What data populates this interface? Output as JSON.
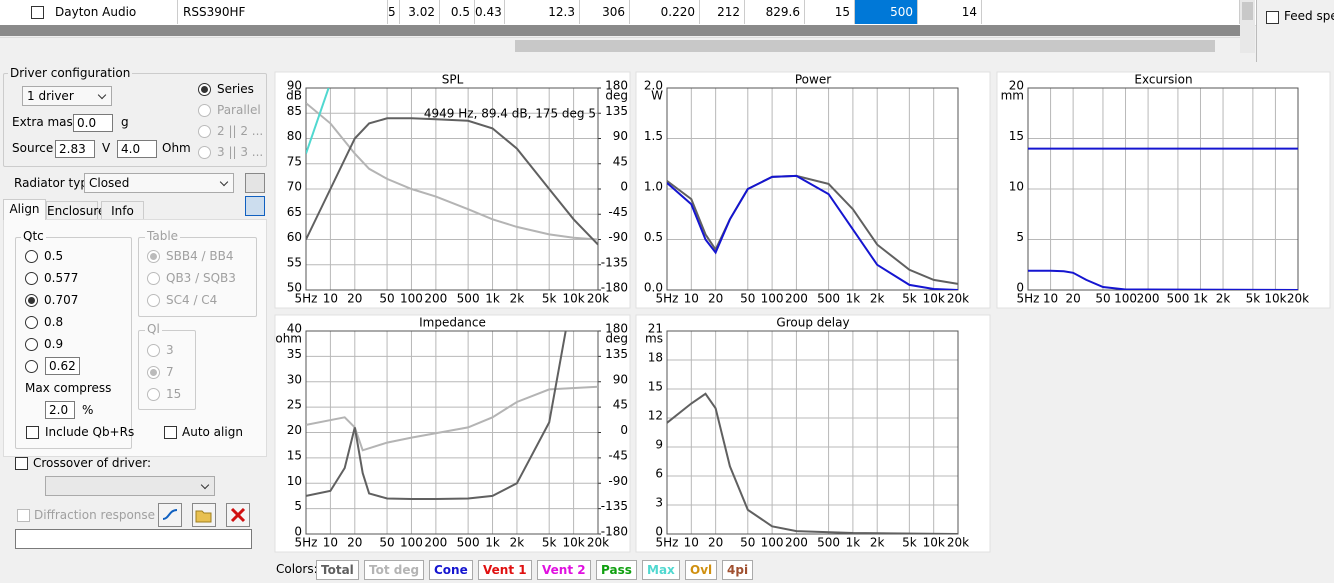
{
  "table": {
    "rows": [
      {
        "checked": false,
        "cells": [
          "Dayton Audio",
          "RSS390HF",
          "5",
          "3.02",
          "0.5",
          "0.43",
          "12.3",
          "306",
          "0.220",
          "212",
          "829.6",
          "15",
          "500",
          "14"
        ]
      }
    ]
  },
  "feed": {
    "label": "Feed spea",
    "checked": false
  },
  "driver_configuration": {
    "title": "Driver configuration",
    "count": "1 driver",
    "wiring": [
      {
        "label": "Series",
        "selected": true,
        "enabled": true
      },
      {
        "label": "Parallel",
        "selected": false,
        "enabled": false
      },
      {
        "label": "2 || 2 ...",
        "selected": false,
        "enabled": false
      },
      {
        "label": "3 || 3 ...",
        "selected": false,
        "enabled": false
      }
    ],
    "extra_mass": {
      "label": "Extra mass",
      "value": "0.0",
      "unit": "g"
    },
    "source": {
      "label": "Source",
      "voltage": "2.83",
      "voltage_unit": "V",
      "resistance": "4.0",
      "resistance_unit": "Ohm"
    }
  },
  "radiator": {
    "label": "Radiator type",
    "value": "Closed"
  },
  "tabs": [
    "Align",
    "Enclosure",
    "Info"
  ],
  "align": {
    "qtc": {
      "title": "Qtc",
      "options": [
        {
          "label": "0.5",
          "selected": false
        },
        {
          "label": "0.577",
          "selected": false
        },
        {
          "label": "0.707",
          "selected": true
        },
        {
          "label": "0.8",
          "selected": false
        },
        {
          "label": "0.9",
          "selected": false
        }
      ],
      "custom": "0.62"
    },
    "max_compress": {
      "label": "Max compress",
      "value": "2.0",
      "unit": "%"
    },
    "include": {
      "label": "Include Qb+Rs",
      "checked": false
    },
    "table": {
      "title": "Table",
      "options": [
        {
          "label": "SBB4 / BB4",
          "selected": true
        },
        {
          "label": "QB3 / SQB3",
          "selected": false
        },
        {
          "label": "SC4 / C4",
          "selected": false
        }
      ]
    },
    "ql": {
      "title": "Ql",
      "options": [
        {
          "label": "3",
          "selected": false
        },
        {
          "label": "7",
          "selected": true
        },
        {
          "label": "15",
          "selected": false
        }
      ]
    },
    "auto": {
      "label": "Auto align",
      "checked": false
    }
  },
  "crossover": {
    "label": "Crossover of driver:",
    "checked": false
  },
  "diffraction": {
    "label": "Diffraction response",
    "checked": false
  },
  "colors": {
    "label": "Colors:",
    "items": [
      {
        "label": "Total",
        "color": "#606060"
      },
      {
        "label": "Tot deg",
        "color": "#b4b4b4"
      },
      {
        "label": "Cone",
        "color": "#1515d0"
      },
      {
        "label": "Vent 1",
        "color": "#e01010"
      },
      {
        "label": "Vent 2",
        "color": "#e010e0"
      },
      {
        "label": "Pass",
        "color": "#10a010"
      },
      {
        "label": "Max",
        "color": "#50d8d0"
      },
      {
        "label": "Ovl",
        "color": "#d09010"
      },
      {
        "label": "4pi",
        "color": "#a05030"
      }
    ]
  },
  "chart_data": [
    {
      "type": "line",
      "title": "SPL",
      "y_unit": "dB",
      "y2_unit": "deg",
      "log_x": true,
      "grid": true,
      "xlim": [
        5,
        20000
      ],
      "xticks": [
        {
          "value": 5,
          "label": "5Hz"
        },
        10,
        20,
        50,
        100,
        200,
        500,
        {
          "value": 1000,
          "label": "1k"
        },
        {
          "value": 2000,
          "label": "2k"
        },
        {
          "value": 5000,
          "label": "5k"
        },
        {
          "value": 10000,
          "label": "10k"
        },
        {
          "value": 20000,
          "label": "20k"
        }
      ],
      "ylim": [
        50,
        90
      ],
      "yticks": [
        50,
        55,
        60,
        65,
        70,
        75,
        80,
        85,
        90
      ],
      "y2lim": [
        -180,
        180
      ],
      "y2ticks": [
        -180,
        -135,
        -90,
        -45,
        0,
        45,
        90,
        135,
        180
      ],
      "annotation": "4949 Hz, 89.4 dB, 175 deg 5",
      "series": [
        {
          "color": "#b4b4b4",
          "axis": "y2",
          "x": [
            5,
            10,
            20,
            30,
            50,
            100,
            200,
            500,
            1000,
            2000,
            5000,
            10000,
            20000
          ],
          "values": [
            153,
            117,
            63,
            36,
            18,
            0,
            -13.5,
            -36,
            -54,
            -67.5,
            -81,
            -87,
            -90
          ]
        },
        {
          "color": "#606060",
          "x": [
            5,
            10,
            20,
            30,
            50,
            100,
            200,
            500,
            1000,
            2000,
            5000,
            10000,
            20000
          ],
          "values": [
            60,
            70,
            80,
            83,
            84,
            84,
            83.8,
            83.5,
            82,
            78,
            70,
            64,
            59
          ]
        },
        {
          "color": "#50d8d0",
          "x": [
            5,
            9.5
          ],
          "values": [
            77,
            90
          ]
        }
      ]
    },
    {
      "type": "line",
      "title": "Power",
      "y_unit": "W",
      "log_x": true,
      "grid": true,
      "xlim": [
        5,
        20000
      ],
      "xticks": [
        {
          "value": 5,
          "label": "5Hz"
        },
        10,
        20,
        50,
        100,
        200,
        500,
        {
          "value": 1000,
          "label": "1k"
        },
        {
          "value": 2000,
          "label": "2k"
        },
        {
          "value": 5000,
          "label": "5k"
        },
        {
          "value": 10000,
          "label": "10k"
        },
        {
          "value": 20000,
          "label": "20k"
        }
      ],
      "ylim": [
        0,
        2
      ],
      "yticks": [
        {
          "value": 0,
          "label": "0.0"
        },
        0.5,
        {
          "value": 1,
          "label": "1.0"
        },
        1.5,
        {
          "value": 2,
          "label": "2.0"
        }
      ],
      "series": [
        {
          "color": "#606060",
          "x": [
            5,
            10,
            15,
            20,
            30,
            50,
            100,
            200,
            500,
            1000,
            2000,
            5000,
            10000,
            20000
          ],
          "values": [
            1.08,
            0.9,
            0.55,
            0.4,
            0.7,
            1.0,
            1.12,
            1.13,
            1.05,
            0.8,
            0.45,
            0.2,
            0.1,
            0.06
          ]
        },
        {
          "color": "#1515d0",
          "x": [
            5,
            10,
            15,
            20,
            30,
            50,
            100,
            200,
            500,
            1000,
            2000,
            5000,
            10000,
            20000
          ],
          "values": [
            1.06,
            0.85,
            0.5,
            0.37,
            0.7,
            1.0,
            1.12,
            1.13,
            0.95,
            0.6,
            0.25,
            0.05,
            0.01,
            0
          ]
        }
      ]
    },
    {
      "type": "line",
      "title": "Excursion",
      "y_unit": "mm",
      "log_x": true,
      "grid": true,
      "xlim": [
        5,
        20000
      ],
      "xticks": [
        {
          "value": 5,
          "label": "5Hz"
        },
        10,
        20,
        50,
        100,
        200,
        500,
        {
          "value": 1000,
          "label": "1k"
        },
        {
          "value": 2000,
          "label": "2k"
        },
        {
          "value": 5000,
          "label": "5k"
        },
        {
          "value": 10000,
          "label": "10k"
        },
        {
          "value": 20000,
          "label": "20k"
        }
      ],
      "ylim": [
        0,
        20
      ],
      "yticks": [
        0,
        5,
        10,
        15,
        20
      ],
      "series": [
        {
          "color": "#1515d0",
          "x": [
            5,
            20000
          ],
          "values": [
            14,
            14
          ]
        },
        {
          "color": "#1515d0",
          "x": [
            5,
            10,
            15,
            20,
            30,
            50,
            100,
            20000
          ],
          "values": [
            1.9,
            1.9,
            1.85,
            1.7,
            1.0,
            0.3,
            0.05,
            0
          ]
        }
      ]
    },
    {
      "type": "line",
      "title": "Impedance",
      "y_unit": "ohm",
      "y2_unit": "deg",
      "log_x": true,
      "grid": true,
      "xlim": [
        5,
        20000
      ],
      "xticks": [
        {
          "value": 5,
          "label": "5Hz"
        },
        10,
        20,
        50,
        100,
        200,
        500,
        {
          "value": 1000,
          "label": "1k"
        },
        {
          "value": 2000,
          "label": "2k"
        },
        {
          "value": 5000,
          "label": "5k"
        },
        {
          "value": 10000,
          "label": "10k"
        },
        {
          "value": 20000,
          "label": "20k"
        }
      ],
      "ylim": [
        0,
        40
      ],
      "yticks": [
        0,
        5,
        10,
        15,
        20,
        25,
        30,
        35,
        40
      ],
      "y2lim": [
        -180,
        180
      ],
      "y2ticks": [
        -180,
        -135,
        -90,
        -45,
        0,
        45,
        90,
        135,
        180
      ],
      "series": [
        {
          "color": "#b4b4b4",
          "axis": "y2",
          "x": [
            5,
            15,
            20,
            25,
            50,
            100,
            500,
            1000,
            2000,
            5000,
            20000
          ],
          "values": [
            13.5,
            27,
            9,
            -31.5,
            -18,
            -9,
            9,
            27,
            54,
            76.5,
            81
          ]
        },
        {
          "color": "#606060",
          "x": [
            5,
            10,
            15,
            20,
            25,
            30,
            50,
            100,
            200,
            500,
            1000,
            2000,
            5000,
            8000
          ],
          "values": [
            7.5,
            8.5,
            13,
            21,
            12,
            8,
            7,
            6.9,
            6.9,
            7,
            7.5,
            10,
            22,
            40
          ]
        }
      ]
    },
    {
      "type": "line",
      "title": "Group delay",
      "y_unit": "ms",
      "log_x": true,
      "grid": true,
      "xlim": [
        5,
        20000
      ],
      "xticks": [
        {
          "value": 5,
          "label": "5Hz"
        },
        10,
        20,
        50,
        100,
        200,
        500,
        {
          "value": 1000,
          "label": "1k"
        },
        {
          "value": 2000,
          "label": "2k"
        },
        {
          "value": 5000,
          "label": "5k"
        },
        {
          "value": 10000,
          "label": "10k"
        },
        {
          "value": 20000,
          "label": "20k"
        }
      ],
      "ylim": [
        0,
        21
      ],
      "yticks": [
        0,
        3,
        6,
        9,
        12,
        15,
        18,
        21
      ],
      "series": [
        {
          "color": "#606060",
          "x": [
            5,
            10,
            15,
            20,
            30,
            50,
            100,
            200,
            1000,
            20000
          ],
          "values": [
            11.5,
            13.5,
            14.5,
            13,
            7,
            2.5,
            0.8,
            0.3,
            0.1,
            0
          ]
        }
      ]
    }
  ]
}
